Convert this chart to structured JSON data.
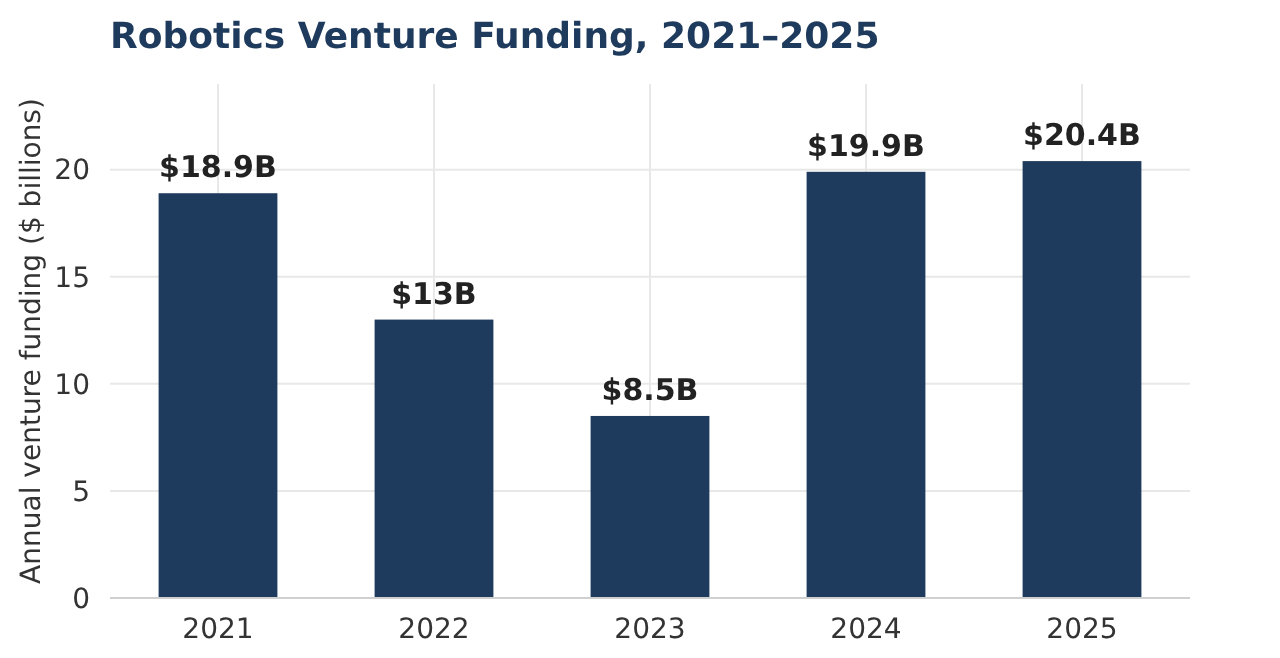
{
  "chart_data": {
    "type": "bar",
    "title": "Robotics Venture Funding, 2021–2025",
    "ylabel": "Annual venture funding ($ billions)",
    "categories": [
      "2021",
      "2022",
      "2023",
      "2024",
      "2025"
    ],
    "values": [
      18.9,
      13,
      8.5,
      19.9,
      20.4
    ],
    "value_labels": [
      "$18.9B",
      "$13B",
      "$8.5B",
      "$19.9B",
      "$20.4B"
    ],
    "color": "#1e3a5c",
    "ylim": [
      0,
      24
    ],
    "yticks": [
      0,
      5,
      10,
      15,
      20
    ],
    "grid": true
  }
}
